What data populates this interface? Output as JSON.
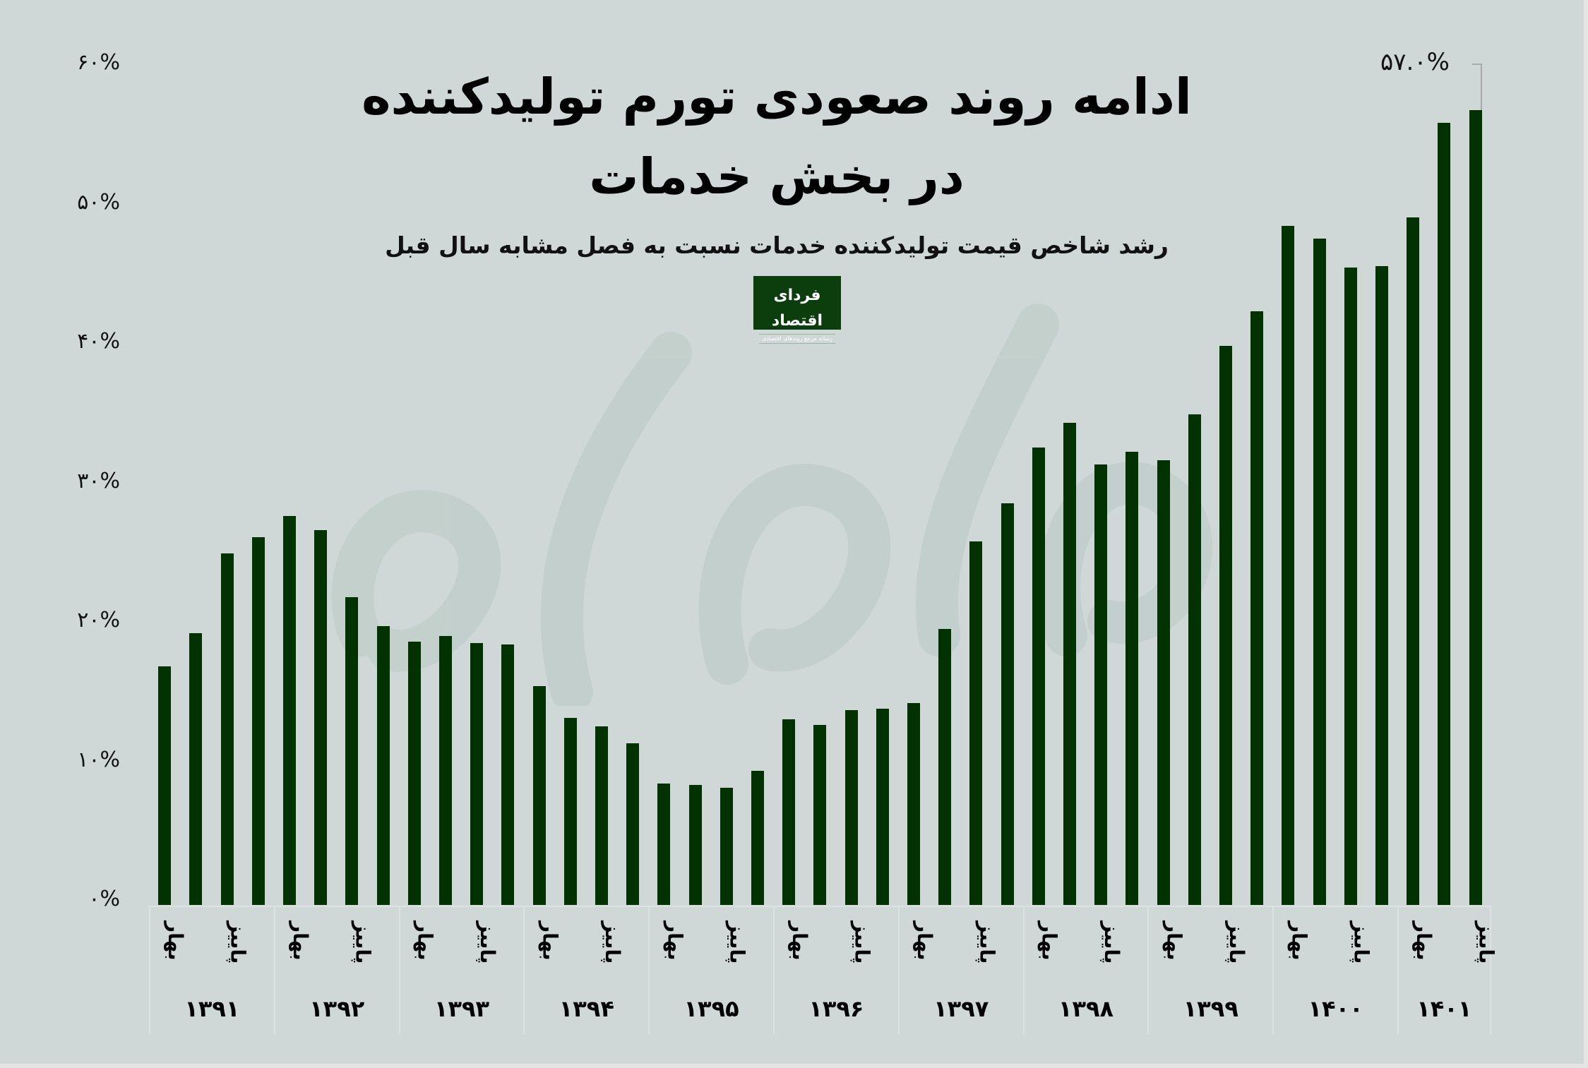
{
  "header": {
    "title_line1": "ادامه روند صعودی تورم تولیدکننده",
    "title_line2": "در بخش خدمات",
    "subtitle": "رشد شاخص قیمت تولیدکننده خدمات نسبت به فصل مشابه سال قبل"
  },
  "logo": {
    "name": "فردای اقتصاد",
    "tagline": "رسانه مرجع روندهای اقتصادی"
  },
  "callout": {
    "label": "۵۷.۰%",
    "bar_index": 42
  },
  "y_axis": {
    "ticks": [
      "۶۰%",
      "۵۰%",
      "۴۰%",
      "۳۰%",
      "۲۰%",
      "۱۰%",
      "۰%"
    ]
  },
  "x_axis": {
    "season_labels": {
      "spring": "بهار",
      "autumn": "پاییز"
    },
    "years": [
      "۱۳۹۱",
      "۱۳۹۲",
      "۱۳۹۳",
      "۱۳۹۴",
      "۱۳۹۵",
      "۱۳۹۶",
      "۱۳۹۷",
      "۱۳۹۸",
      "۱۳۹۹",
      "۱۴۰۰",
      "۱۴۰۱"
    ]
  },
  "colors": {
    "background": "#cfd8d7",
    "bar": "#023102",
    "logo_bg": "#0c3d0c"
  },
  "chart_data": {
    "type": "bar",
    "title": "ادامه روند صعودی تورم تولیدکننده در بخش خدمات",
    "subtitle": "رشد شاخص قیمت تولیدکننده خدمات نسبت به فصل مشابه سال قبل",
    "xlabel": "",
    "ylabel": "",
    "ylim": [
      0,
      60
    ],
    "yticks": [
      0,
      10,
      20,
      30,
      40,
      50,
      60
    ],
    "grid": false,
    "legend": null,
    "categories": [
      "1391 Q1",
      "1391 Q2",
      "1391 Q3",
      "1391 Q4",
      "1392 Q1",
      "1392 Q2",
      "1392 Q3",
      "1392 Q4",
      "1393 Q1",
      "1393 Q2",
      "1393 Q3",
      "1393 Q4",
      "1394 Q1",
      "1394 Q2",
      "1394 Q3",
      "1394 Q4",
      "1395 Q1",
      "1395 Q2",
      "1395 Q3",
      "1395 Q4",
      "1396 Q1",
      "1396 Q2",
      "1396 Q3",
      "1396 Q4",
      "1397 Q1",
      "1397 Q2",
      "1397 Q3",
      "1397 Q4",
      "1398 Q1",
      "1398 Q2",
      "1398 Q3",
      "1398 Q4",
      "1399 Q1",
      "1399 Q2",
      "1399 Q3",
      "1399 Q4",
      "1400 Q1",
      "1400 Q2",
      "1400 Q3",
      "1400 Q4",
      "1401 Q1",
      "1401 Q2",
      "1401 Q3"
    ],
    "values": [
      17.1,
      19.5,
      25.2,
      26.4,
      27.9,
      26.9,
      22.1,
      20.0,
      18.9,
      19.3,
      18.8,
      18.7,
      15.7,
      13.4,
      12.8,
      11.6,
      8.7,
      8.6,
      8.4,
      9.6,
      13.3,
      12.9,
      14.0,
      14.1,
      14.5,
      19.8,
      26.1,
      28.8,
      32.8,
      34.6,
      31.6,
      32.5,
      31.9,
      35.2,
      40.1,
      42.6,
      48.7,
      47.8,
      45.7,
      45.8,
      49.3,
      56.1,
      57.0
    ],
    "annotations": [
      {
        "index": 42,
        "text": "57.0%"
      }
    ]
  }
}
